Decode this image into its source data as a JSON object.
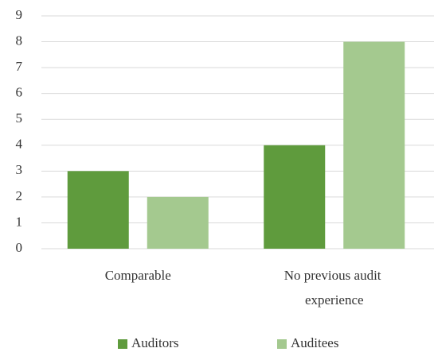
{
  "chart_data": {
    "type": "bar",
    "categories": [
      "Comparable",
      "No previous audit experience"
    ],
    "series": [
      {
        "name": "Auditors",
        "color": "#5f9b3d",
        "values": [
          3,
          4
        ]
      },
      {
        "name": "Auditees",
        "color": "#a4c98f",
        "values": [
          2,
          8
        ]
      }
    ],
    "ylim": [
      0,
      9
    ],
    "yticks": [
      0,
      1,
      2,
      3,
      4,
      5,
      6,
      7,
      8,
      9
    ],
    "grid": true,
    "legend": "bottom"
  }
}
